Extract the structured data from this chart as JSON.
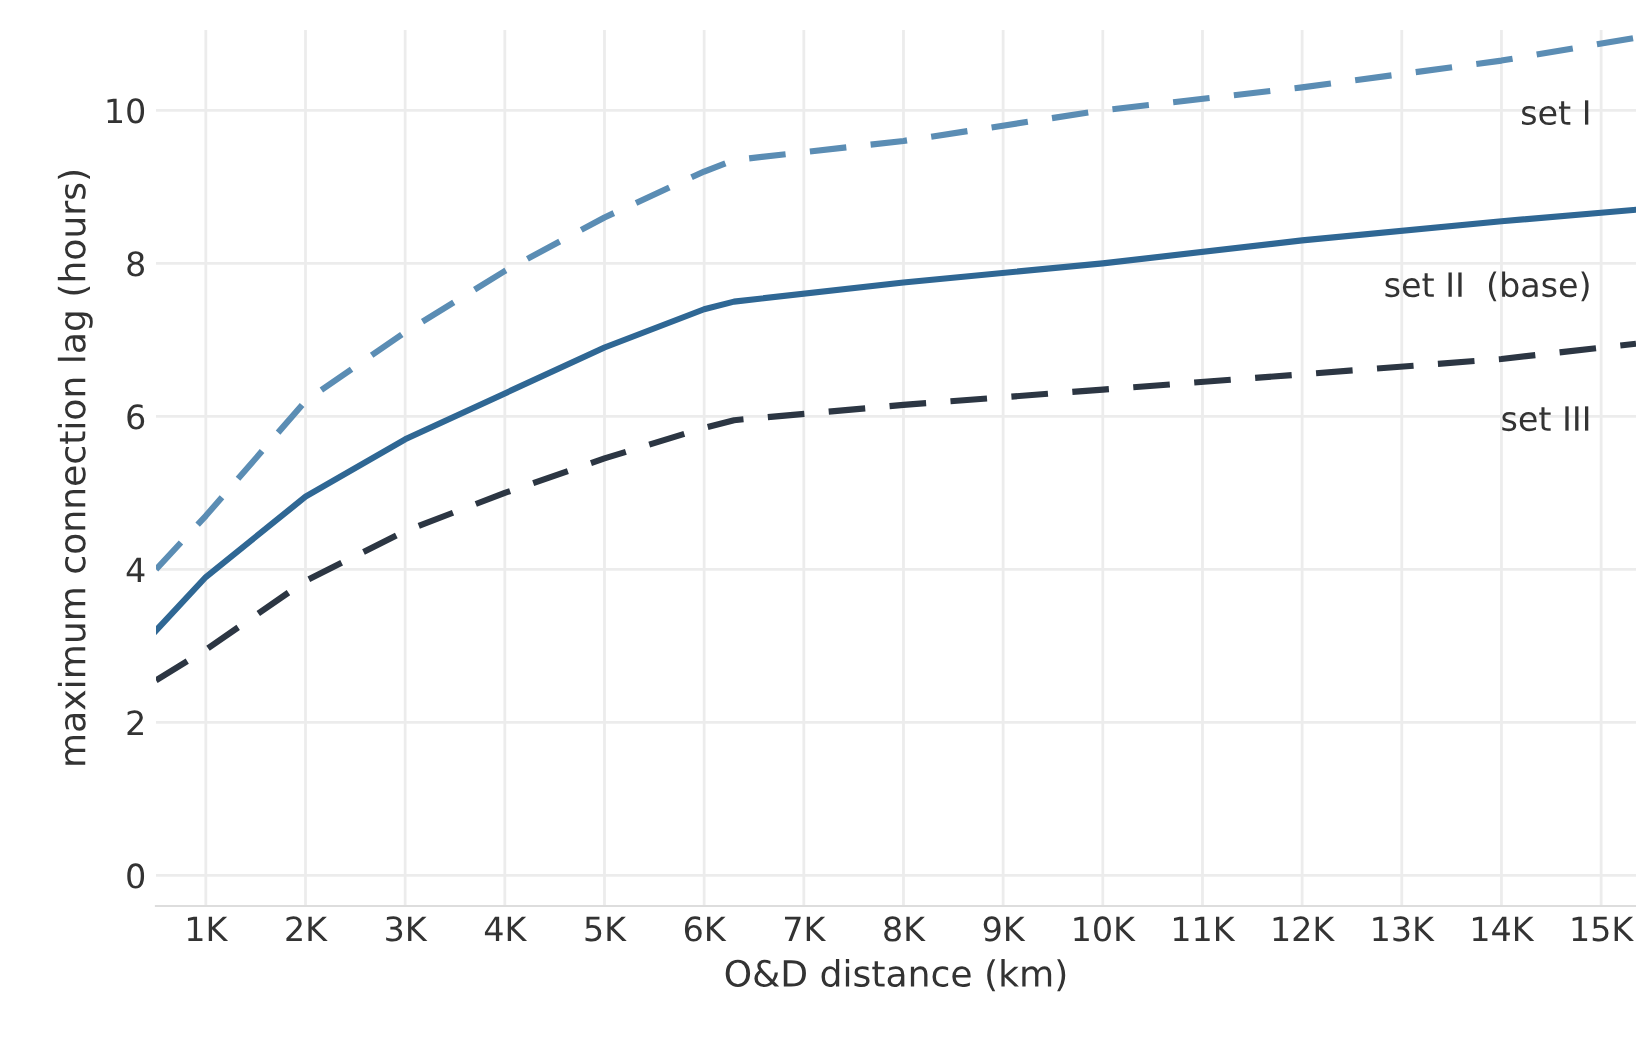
{
  "chart_data": {
    "type": "line",
    "xlabel": "O&D distance (km)",
    "ylabel": "maximum connection lag (hours)",
    "x": [
      500,
      1000,
      2000,
      3000,
      4000,
      5000,
      6000,
      6300,
      8000,
      10000,
      12000,
      14000,
      15350
    ],
    "series": [
      {
        "name": "set I",
        "color": "#5b8db4",
        "line_style": "dashed",
        "values": [
          4.0,
          4.7,
          6.2,
          7.1,
          7.9,
          8.6,
          9.2,
          9.35,
          9.6,
          10.0,
          10.3,
          10.65,
          10.95
        ]
      },
      {
        "name": "set II  (base)",
        "color": "#2f6794",
        "line_style": "solid",
        "values": [
          3.2,
          3.9,
          4.95,
          5.7,
          6.3,
          6.9,
          7.4,
          7.5,
          7.75,
          8.0,
          8.3,
          8.55,
          8.7
        ]
      },
      {
        "name": "set III",
        "color": "#2c3643",
        "line_style": "dashed",
        "values": [
          2.55,
          2.95,
          3.85,
          4.5,
          5.0,
          5.45,
          5.85,
          5.95,
          6.15,
          6.35,
          6.55,
          6.75,
          6.95
        ]
      }
    ],
    "xlim": [
      500,
      15350
    ],
    "ylim": [
      -0.4,
      11.05
    ],
    "xticks": [
      {
        "value": 1000,
        "label": "1K"
      },
      {
        "value": 2000,
        "label": "2K"
      },
      {
        "value": 3000,
        "label": "3K"
      },
      {
        "value": 4000,
        "label": "4K"
      },
      {
        "value": 5000,
        "label": "5K"
      },
      {
        "value": 6000,
        "label": "6K"
      },
      {
        "value": 7000,
        "label": "7K"
      },
      {
        "value": 8000,
        "label": "8K"
      },
      {
        "value": 9000,
        "label": "9K"
      },
      {
        "value": 10000,
        "label": "10K"
      },
      {
        "value": 11000,
        "label": "11K"
      },
      {
        "value": 12000,
        "label": "12K"
      },
      {
        "value": 13000,
        "label": "13K"
      },
      {
        "value": 14000,
        "label": "14K"
      },
      {
        "value": 15000,
        "label": "15K"
      }
    ],
    "yticks": [
      0,
      2,
      4,
      6,
      8,
      10
    ],
    "grid": true,
    "legend": false
  }
}
